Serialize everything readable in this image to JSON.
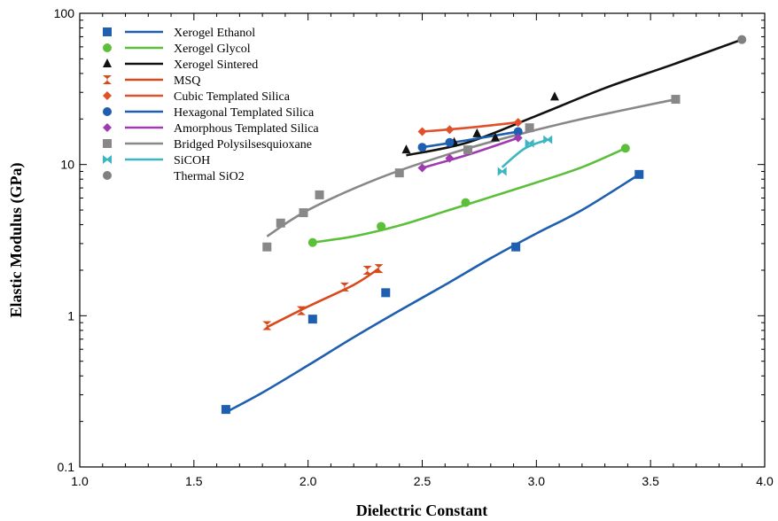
{
  "chart_data": {
    "type": "scatter",
    "title": "",
    "xlabel": "Dielectric Constant",
    "ylabel": "Elastic Modulus (GPa)",
    "xlim": [
      1.0,
      4.0
    ],
    "ylim": [
      0.1,
      100
    ],
    "yscale": "log",
    "grid": false,
    "legend_position": "top-left",
    "x_ticks": [
      "1.0",
      "1.5",
      "2.0",
      "2.5",
      "3.0",
      "3.5",
      "4.0"
    ],
    "y_ticks": [
      "0.1",
      "1",
      "10",
      "100"
    ],
    "series": [
      {
        "name": "Xerogel Ethanol",
        "marker": "square",
        "color": "#1f5fb0",
        "points": [
          [
            1.64,
            0.24
          ],
          [
            2.02,
            0.95
          ],
          [
            2.34,
            1.42
          ],
          [
            2.91,
            2.85
          ],
          [
            3.45,
            8.6
          ]
        ],
        "fit": [
          [
            1.64,
            0.23
          ],
          [
            1.8,
            0.31
          ],
          [
            2.0,
            0.47
          ],
          [
            2.2,
            0.72
          ],
          [
            2.4,
            1.08
          ],
          [
            2.6,
            1.6
          ],
          [
            2.8,
            2.4
          ],
          [
            3.0,
            3.5
          ],
          [
            3.2,
            5.0
          ],
          [
            3.45,
            8.6
          ]
        ]
      },
      {
        "name": "Xerogel Glycol",
        "marker": "circle",
        "color": "#5cbf3a",
        "points": [
          [
            2.02,
            3.05
          ],
          [
            2.32,
            3.9
          ],
          [
            2.69,
            5.6
          ],
          [
            3.39,
            12.8
          ]
        ],
        "fit": [
          [
            2.02,
            3.05
          ],
          [
            2.2,
            3.35
          ],
          [
            2.4,
            3.95
          ],
          [
            2.6,
            4.9
          ],
          [
            2.8,
            6.1
          ],
          [
            3.0,
            7.6
          ],
          [
            3.2,
            9.6
          ],
          [
            3.39,
            12.8
          ]
        ]
      },
      {
        "name": "Xerogel Sintered",
        "marker": "triangle",
        "color": "#111111",
        "points": [
          [
            2.43,
            12.5
          ],
          [
            2.64,
            14.0
          ],
          [
            2.74,
            16.0
          ],
          [
            2.82,
            15.0
          ],
          [
            3.08,
            28.0
          ]
        ],
        "fit": [
          [
            2.43,
            11.5
          ],
          [
            2.7,
            14.0
          ],
          [
            3.0,
            21.0
          ],
          [
            3.3,
            32.0
          ],
          [
            3.6,
            46.0
          ],
          [
            3.9,
            67.0
          ]
        ]
      },
      {
        "name": "MSQ",
        "marker": "hourglass",
        "color": "#d84a1b",
        "points": [
          [
            1.82,
            0.86
          ],
          [
            1.97,
            1.08
          ],
          [
            2.16,
            1.55
          ],
          [
            2.26,
            2.0
          ],
          [
            2.31,
            2.05
          ]
        ],
        "fit": [
          [
            1.82,
            0.84
          ],
          [
            2.0,
            1.15
          ],
          [
            2.2,
            1.6
          ],
          [
            2.31,
            2.05
          ]
        ]
      },
      {
        "name": "Cubic Templated Silica",
        "marker": "diamond",
        "color": "#e0502b",
        "points": [
          [
            2.5,
            16.5
          ],
          [
            2.62,
            17.0
          ],
          [
            2.92,
            19.0
          ]
        ],
        "fit": [
          [
            2.5,
            16.5
          ],
          [
            2.7,
            17.5
          ],
          [
            2.92,
            19.0
          ]
        ]
      },
      {
        "name": "Hexagonal Templated Silica",
        "marker": "circle",
        "color": "#1f5fb0",
        "points": [
          [
            2.5,
            13.0
          ],
          [
            2.62,
            14.0
          ],
          [
            2.92,
            16.5
          ]
        ],
        "fit": [
          [
            2.5,
            13.0
          ],
          [
            2.7,
            14.5
          ],
          [
            2.92,
            16.5
          ]
        ]
      },
      {
        "name": "Amorphous Templated Silica",
        "marker": "diamond",
        "color": "#a03ab0",
        "points": [
          [
            2.5,
            9.5
          ],
          [
            2.62,
            11.0
          ],
          [
            2.92,
            15.0
          ]
        ],
        "fit": [
          [
            2.5,
            9.5
          ],
          [
            2.7,
            11.6
          ],
          [
            2.92,
            15.0
          ]
        ]
      },
      {
        "name": "Bridged Polysilsesquioxane",
        "marker": "square",
        "color": "#888888",
        "points": [
          [
            1.82,
            2.85
          ],
          [
            1.88,
            4.1
          ],
          [
            1.98,
            4.8
          ],
          [
            2.05,
            6.3
          ],
          [
            2.4,
            8.8
          ],
          [
            2.7,
            12.5
          ],
          [
            2.97,
            17.5
          ],
          [
            3.61,
            27.0
          ]
        ],
        "fit": [
          [
            1.82,
            3.35
          ],
          [
            2.0,
            5.0
          ],
          [
            2.3,
            8.0
          ],
          [
            2.6,
            11.5
          ],
          [
            2.9,
            15.5
          ],
          [
            3.2,
            20.0
          ],
          [
            3.61,
            27.0
          ]
        ]
      },
      {
        "name": "SiCOH",
        "marker": "bowtie",
        "color": "#3cb6c0",
        "points": [
          [
            2.85,
            9.0
          ],
          [
            2.97,
            13.8
          ],
          [
            3.05,
            14.6
          ]
        ],
        "fit": [
          [
            2.85,
            9.6
          ],
          [
            2.95,
            12.8
          ],
          [
            3.05,
            14.6
          ]
        ]
      },
      {
        "name": "Thermal SiO2",
        "marker": "circle",
        "color": "#808080",
        "points": [
          [
            3.9,
            67.0
          ]
        ],
        "fit": []
      }
    ]
  }
}
